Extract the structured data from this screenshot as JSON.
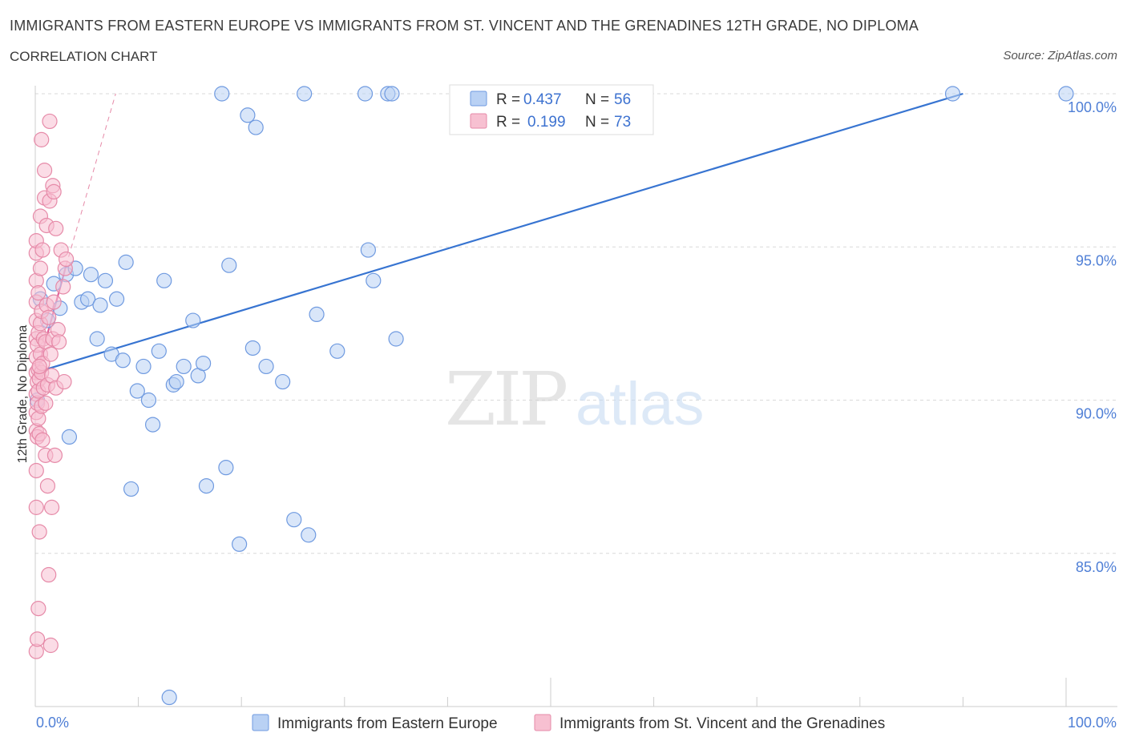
{
  "header": {
    "title": "IMMIGRANTS FROM EASTERN EUROPE VS IMMIGRANTS FROM ST. VINCENT AND THE GRENADINES 12TH GRADE, NO DIPLOMA",
    "subtitle": "CORRELATION CHART",
    "source": "Source: ZipAtlas.com"
  },
  "watermark": {
    "zip": "ZIP",
    "atlas": "atlas"
  },
  "stats": {
    "r_label": "R =",
    "n_label": "N =",
    "blue": {
      "r": "0.437",
      "n": "56"
    },
    "pink": {
      "r": "0.199",
      "n": "73"
    }
  },
  "colors": {
    "blue_fill": "#b9d1f4",
    "blue_stroke": "#6f9ae0",
    "blue_line": "#3774d1",
    "pink_fill": "#f7c0d1",
    "pink_stroke": "#e68aa8",
    "pink_line": "#e0609a",
    "grid": "#d9d9d9",
    "tick_text": "#4f7fd6"
  },
  "chart_data": {
    "type": "scatter",
    "title": "IMMIGRANTS FROM EASTERN EUROPE VS IMMIGRANTS FROM ST. VINCENT AND THE GRENADINES 12TH GRADE, NO DIPLOMA",
    "xlabel": "",
    "ylabel": "12th Grade, No Diploma",
    "xlim": [
      0,
      100
    ],
    "ylim": [
      80,
      100
    ],
    "x_tick_labels": [
      "0.0%",
      "100.0%"
    ],
    "y_ticks": [
      85,
      90,
      95,
      100
    ],
    "y_tick_labels": [
      "85.0%",
      "90.0%",
      "95.0%",
      "100.0%"
    ],
    "grid": true,
    "legend_position": "bottom",
    "series": [
      {
        "name": "Immigrants from Eastern Europe",
        "color": "#6f9ae0",
        "trend": {
          "x": [
            0,
            90
          ],
          "y": [
            90.9,
            100
          ]
        },
        "points": [
          {
            "x": 0.2,
            "y": 90.0
          },
          {
            "x": 0.5,
            "y": 93.3
          },
          {
            "x": 1.2,
            "y": 92.6
          },
          {
            "x": 1.8,
            "y": 93.8
          },
          {
            "x": 2.4,
            "y": 93.0
          },
          {
            "x": 3.0,
            "y": 94.1
          },
          {
            "x": 3.3,
            "y": 88.8
          },
          {
            "x": 3.9,
            "y": 94.3
          },
          {
            "x": 4.5,
            "y": 93.2
          },
          {
            "x": 5.1,
            "y": 93.3
          },
          {
            "x": 5.4,
            "y": 94.1
          },
          {
            "x": 6.0,
            "y": 92.0
          },
          {
            "x": 6.3,
            "y": 93.1
          },
          {
            "x": 6.8,
            "y": 93.9
          },
          {
            "x": 7.4,
            "y": 91.5
          },
          {
            "x": 7.9,
            "y": 93.3
          },
          {
            "x": 8.5,
            "y": 91.3
          },
          {
            "x": 8.8,
            "y": 94.5
          },
          {
            "x": 9.3,
            "y": 87.1
          },
          {
            "x": 9.9,
            "y": 90.3
          },
          {
            "x": 10.5,
            "y": 91.1
          },
          {
            "x": 11.0,
            "y": 90.0
          },
          {
            "x": 11.4,
            "y": 89.2
          },
          {
            "x": 12.0,
            "y": 91.6
          },
          {
            "x": 12.5,
            "y": 93.9
          },
          {
            "x": 13.0,
            "y": 80.3
          },
          {
            "x": 13.4,
            "y": 90.5
          },
          {
            "x": 13.7,
            "y": 90.6
          },
          {
            "x": 14.4,
            "y": 91.1
          },
          {
            "x": 15.3,
            "y": 92.6
          },
          {
            "x": 15.8,
            "y": 90.8
          },
          {
            "x": 16.3,
            "y": 91.2
          },
          {
            "x": 16.6,
            "y": 87.2
          },
          {
            "x": 18.1,
            "y": 100.0
          },
          {
            "x": 18.5,
            "y": 87.8
          },
          {
            "x": 18.8,
            "y": 94.4
          },
          {
            "x": 19.8,
            "y": 85.3
          },
          {
            "x": 20.6,
            "y": 99.3
          },
          {
            "x": 21.1,
            "y": 91.7
          },
          {
            "x": 21.4,
            "y": 98.9
          },
          {
            "x": 22.4,
            "y": 91.1
          },
          {
            "x": 24.0,
            "y": 90.6
          },
          {
            "x": 25.1,
            "y": 86.1
          },
          {
            "x": 26.1,
            "y": 100.0
          },
          {
            "x": 26.5,
            "y": 85.6
          },
          {
            "x": 27.3,
            "y": 92.8
          },
          {
            "x": 29.3,
            "y": 91.6
          },
          {
            "x": 32.0,
            "y": 100.0
          },
          {
            "x": 32.3,
            "y": 94.9
          },
          {
            "x": 32.8,
            "y": 93.9
          },
          {
            "x": 34.2,
            "y": 100.0
          },
          {
            "x": 34.6,
            "y": 100.0
          },
          {
            "x": 35.0,
            "y": 92.0
          },
          {
            "x": 49.0,
            "y": 100.0
          },
          {
            "x": 89.0,
            "y": 100.0
          },
          {
            "x": 100.0,
            "y": 100.0
          }
        ]
      },
      {
        "name": "Immigrants from St. Vincent and the Grenadines",
        "color": "#e68aa8",
        "trend": {
          "x": [
            0,
            3.0
          ],
          "y": [
            90.7,
            94.4
          ]
        },
        "trend_extension": {
          "x": [
            3.0,
            7.8
          ],
          "y": [
            94.4,
            100.0
          ]
        },
        "points": [
          {
            "x": 0.1,
            "y": 81.8
          },
          {
            "x": 0.1,
            "y": 86.5
          },
          {
            "x": 0.1,
            "y": 87.7
          },
          {
            "x": 0.1,
            "y": 89.0
          },
          {
            "x": 0.1,
            "y": 89.6
          },
          {
            "x": 0.1,
            "y": 90.2
          },
          {
            "x": 0.1,
            "y": 90.9
          },
          {
            "x": 0.1,
            "y": 91.4
          },
          {
            "x": 0.1,
            "y": 92.0
          },
          {
            "x": 0.1,
            "y": 92.6
          },
          {
            "x": 0.1,
            "y": 93.2
          },
          {
            "x": 0.1,
            "y": 93.9
          },
          {
            "x": 0.1,
            "y": 94.8
          },
          {
            "x": 0.1,
            "y": 95.2
          },
          {
            "x": 0.2,
            "y": 82.2
          },
          {
            "x": 0.2,
            "y": 88.8
          },
          {
            "x": 0.2,
            "y": 89.9
          },
          {
            "x": 0.2,
            "y": 90.6
          },
          {
            "x": 0.2,
            "y": 91.8
          },
          {
            "x": 0.3,
            "y": 83.2
          },
          {
            "x": 0.3,
            "y": 89.4
          },
          {
            "x": 0.3,
            "y": 90.3
          },
          {
            "x": 0.3,
            "y": 91.0
          },
          {
            "x": 0.3,
            "y": 92.2
          },
          {
            "x": 0.3,
            "y": 93.5
          },
          {
            "x": 0.4,
            "y": 85.7
          },
          {
            "x": 0.4,
            "y": 88.9
          },
          {
            "x": 0.4,
            "y": 90.7
          },
          {
            "x": 0.5,
            "y": 91.5
          },
          {
            "x": 0.5,
            "y": 92.5
          },
          {
            "x": 0.5,
            "y": 94.3
          },
          {
            "x": 0.5,
            "y": 96.0
          },
          {
            "x": 0.6,
            "y": 89.8
          },
          {
            "x": 0.6,
            "y": 90.9
          },
          {
            "x": 0.6,
            "y": 92.9
          },
          {
            "x": 0.6,
            "y": 98.5
          },
          {
            "x": 0.7,
            "y": 88.7
          },
          {
            "x": 0.7,
            "y": 91.2
          },
          {
            "x": 0.7,
            "y": 94.9
          },
          {
            "x": 0.8,
            "y": 90.4
          },
          {
            "x": 0.8,
            "y": 92.0
          },
          {
            "x": 0.9,
            "y": 96.6
          },
          {
            "x": 0.9,
            "y": 97.5
          },
          {
            "x": 1.0,
            "y": 88.2
          },
          {
            "x": 1.0,
            "y": 89.9
          },
          {
            "x": 1.0,
            "y": 91.9
          },
          {
            "x": 1.1,
            "y": 93.1
          },
          {
            "x": 1.1,
            "y": 95.7
          },
          {
            "x": 1.2,
            "y": 87.2
          },
          {
            "x": 1.2,
            "y": 90.5
          },
          {
            "x": 1.3,
            "y": 84.3
          },
          {
            "x": 1.3,
            "y": 92.7
          },
          {
            "x": 1.4,
            "y": 96.5
          },
          {
            "x": 1.4,
            "y": 99.1
          },
          {
            "x": 1.5,
            "y": 82.0
          },
          {
            "x": 1.5,
            "y": 91.5
          },
          {
            "x": 1.6,
            "y": 86.5
          },
          {
            "x": 1.6,
            "y": 90.8
          },
          {
            "x": 1.7,
            "y": 92.0
          },
          {
            "x": 1.7,
            "y": 97.0
          },
          {
            "x": 1.8,
            "y": 93.2
          },
          {
            "x": 1.8,
            "y": 96.8
          },
          {
            "x": 1.9,
            "y": 88.2
          },
          {
            "x": 2.0,
            "y": 90.4
          },
          {
            "x": 2.0,
            "y": 95.6
          },
          {
            "x": 2.2,
            "y": 92.3
          },
          {
            "x": 2.3,
            "y": 91.9
          },
          {
            "x": 2.5,
            "y": 94.9
          },
          {
            "x": 2.7,
            "y": 93.7
          },
          {
            "x": 2.8,
            "y": 90.6
          },
          {
            "x": 2.9,
            "y": 94.3
          },
          {
            "x": 3.0,
            "y": 94.6
          },
          {
            "x": 0.4,
            "y": 91.1
          }
        ]
      }
    ]
  }
}
